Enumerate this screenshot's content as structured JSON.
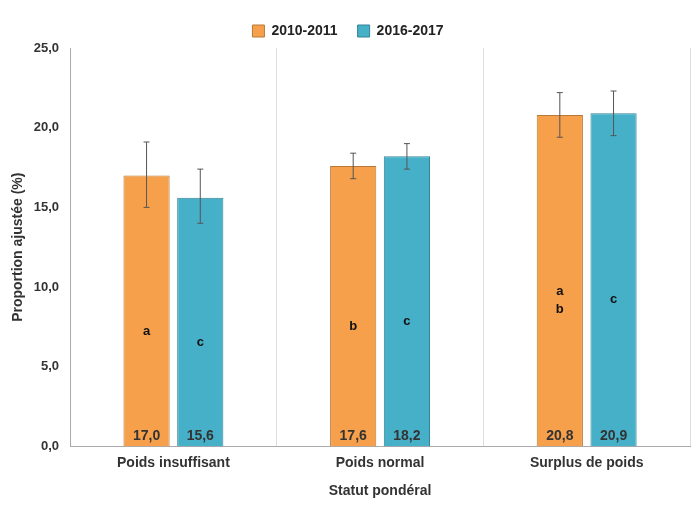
{
  "chart_data": {
    "type": "bar",
    "x_label": "Statut pondéral",
    "y_label": "Proportion ajustée (%)",
    "categories": [
      "Poids insuffisant",
      "Poids normal",
      "Surplus de poids"
    ],
    "series": [
      {
        "name": "2010-2011",
        "color": "#F7A04B",
        "values": [
          17.0,
          17.6,
          20.8
        ],
        "value_labels": [
          "17,0",
          "17,6",
          "20,8"
        ],
        "error_low": [
          15.0,
          16.8,
          19.4
        ],
        "error_high": [
          19.1,
          18.4,
          22.2
        ],
        "letters": [
          [
            "a"
          ],
          [
            "b"
          ],
          [
            "a",
            "b"
          ]
        ]
      },
      {
        "name": "2016-2017",
        "color": "#45B0C8",
        "values": [
          15.6,
          18.2,
          20.9
        ],
        "value_labels": [
          "15,6",
          "18,2",
          "20,9"
        ],
        "error_low": [
          14.0,
          17.4,
          19.5
        ],
        "error_high": [
          17.4,
          19.0,
          22.3
        ],
        "letters": [
          [
            "c"
          ],
          [
            "c"
          ],
          [
            "c"
          ]
        ]
      }
    ],
    "ylim": [
      0,
      25
    ],
    "yticks": [
      {
        "value": 0,
        "label": "0,0"
      },
      {
        "value": 5,
        "label": "5,0"
      },
      {
        "value": 10,
        "label": "10,0"
      },
      {
        "value": 15,
        "label": "15,0"
      },
      {
        "value": 20,
        "label": "20,0"
      },
      {
        "value": 25,
        "label": "25,0"
      }
    ],
    "grid": true,
    "legend": "top",
    "data_labels": true
  }
}
